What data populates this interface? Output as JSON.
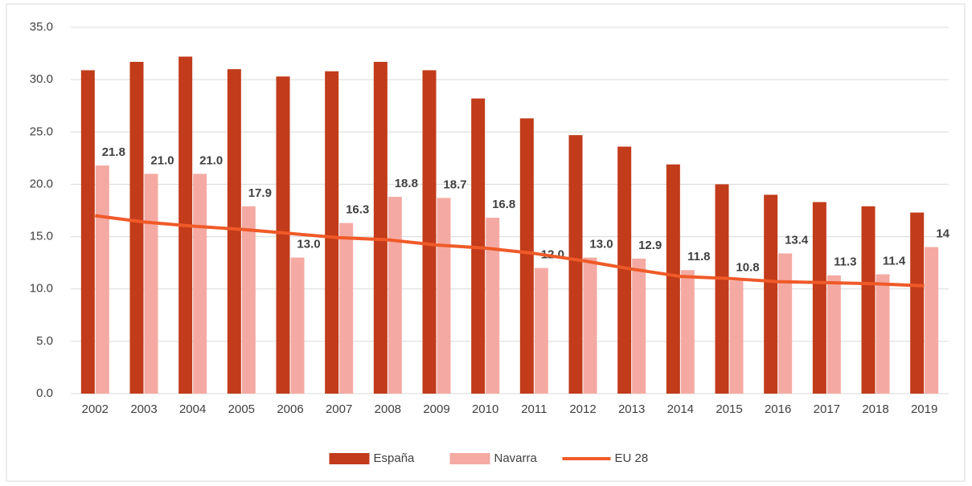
{
  "chart_data": {
    "type": "bar",
    "categories": [
      "2002",
      "2003",
      "2004",
      "2005",
      "2006",
      "2007",
      "2008",
      "2009",
      "2010",
      "2011",
      "2012",
      "2013",
      "2014",
      "2015",
      "2016",
      "2017",
      "2018",
      "2019"
    ],
    "series": [
      {
        "name": "España",
        "color": "#c23b1a",
        "values": [
          30.9,
          31.7,
          32.2,
          31.0,
          30.3,
          30.8,
          31.7,
          30.9,
          28.2,
          26.3,
          24.7,
          23.6,
          21.9,
          20.0,
          19.0,
          18.3,
          17.9,
          17.3
        ]
      },
      {
        "name": "Navarra",
        "color": "#f4aaa3",
        "values": [
          21.8,
          21.0,
          21.0,
          17.9,
          13.0,
          16.3,
          18.8,
          18.7,
          16.8,
          12.0,
          13.0,
          12.9,
          11.8,
          10.8,
          13.4,
          11.3,
          11.4,
          14
        ],
        "value_labels": [
          "21.8",
          "21.0",
          "21.0",
          "17.9",
          "13.0",
          "16.3",
          "18.8",
          "18.7",
          "16.8",
          "12.0",
          "13.0",
          "12.9",
          "11.8",
          "10.8",
          "13.4",
          "11.3",
          "11.4",
          "14"
        ]
      },
      {
        "name": "EU 28",
        "color": "#f05a28",
        "type": "line",
        "values": [
          17.0,
          16.4,
          16.0,
          15.7,
          15.3,
          14.9,
          14.7,
          14.2,
          13.9,
          13.4,
          12.7,
          11.9,
          11.2,
          11.0,
          10.7,
          10.6,
          10.5,
          10.3
        ]
      }
    ],
    "ylim": [
      0,
      35
    ],
    "yticks": [
      {
        "value": 0,
        "label": "0.0"
      },
      {
        "value": 5,
        "label": "5.0"
      },
      {
        "value": 10,
        "label": "10.0"
      },
      {
        "value": 15,
        "label": "15.0"
      },
      {
        "value": 20,
        "label": "20.0"
      },
      {
        "value": 25,
        "label": "25.0"
      },
      {
        "value": 30,
        "label": "30.0"
      },
      {
        "value": 35,
        "label": "35.0"
      }
    ],
    "grid": true,
    "legend": "bottom"
  }
}
